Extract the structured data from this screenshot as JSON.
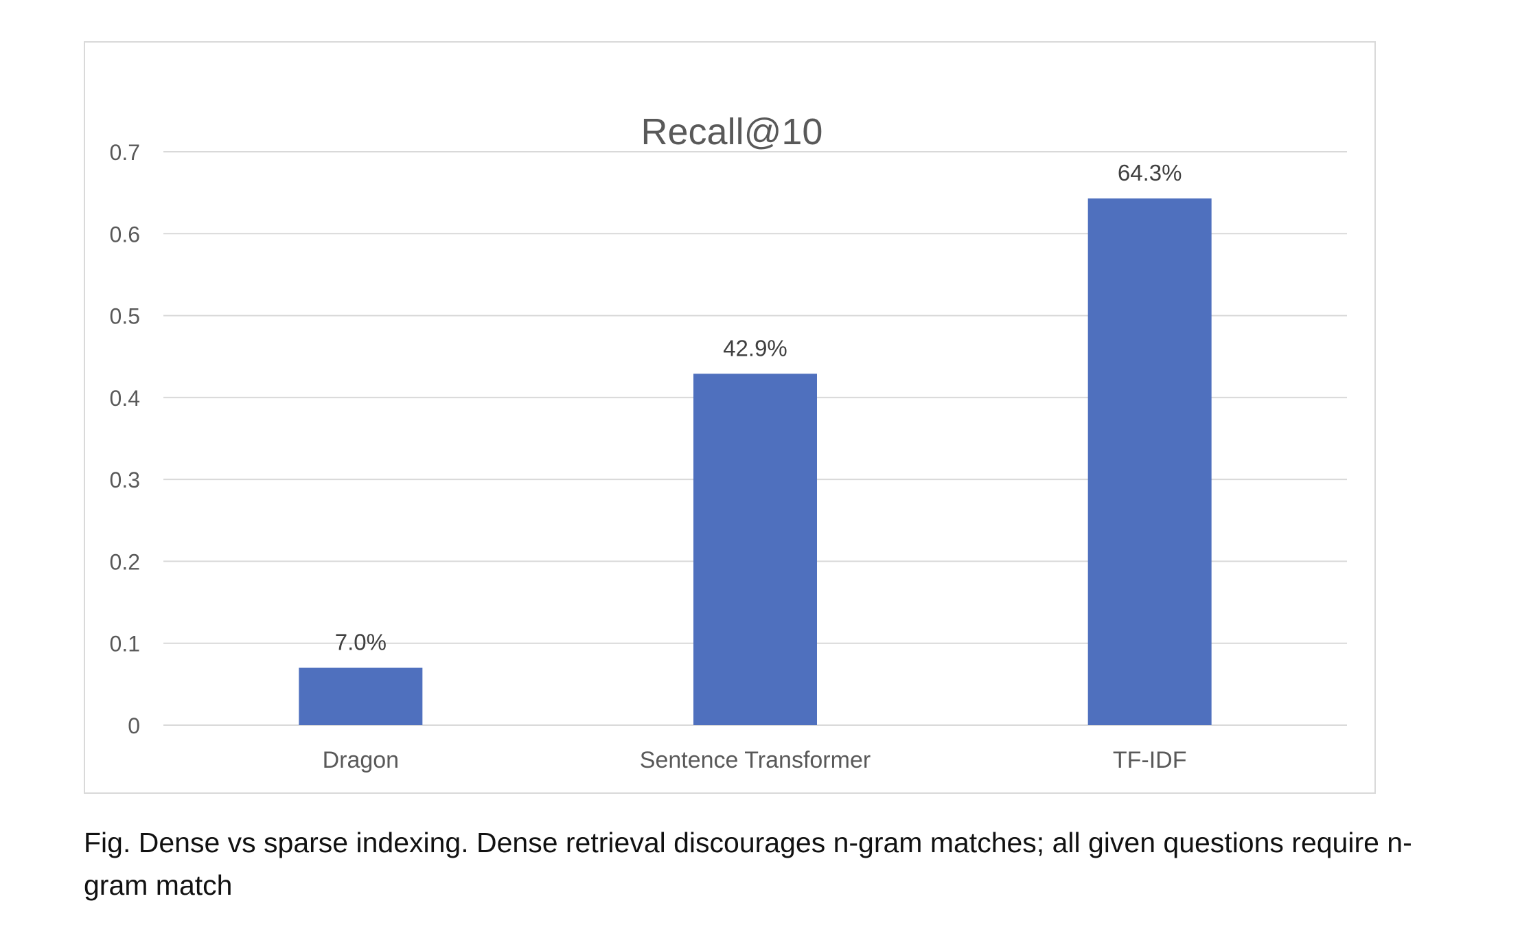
{
  "chart_data": {
    "type": "bar",
    "title": "Recall@10",
    "categories": [
      "Dragon",
      "Sentence Transformer",
      "TF-IDF"
    ],
    "values": [
      0.07,
      0.429,
      0.643
    ],
    "data_labels": [
      "7.0%",
      "42.9%",
      "64.3%"
    ],
    "y_ticks": [
      "0",
      "0.1",
      "0.2",
      "0.3",
      "0.4",
      "0.5",
      "0.6",
      "0.7"
    ],
    "ylim": [
      0,
      0.7
    ],
    "xlabel": "",
    "ylabel": "",
    "grid": true,
    "legend": "none",
    "colors": {
      "bar": "#4f70be",
      "grid": "#d9d9d9",
      "text": "#595959",
      "label": "#404040"
    }
  },
  "caption": "Fig. Dense vs sparse indexing. Dense retrieval discourages n-gram matches; all given questions require n-gram match"
}
